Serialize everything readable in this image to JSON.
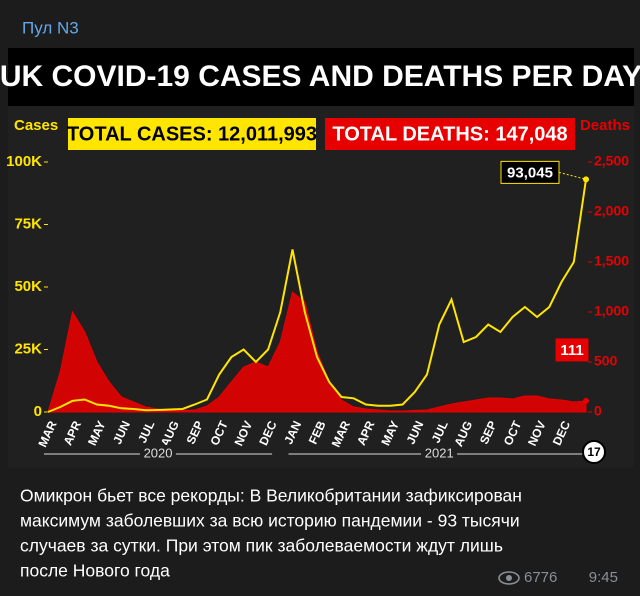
{
  "channel": "Пул N3",
  "chart_data": {
    "type": "line",
    "title": "UK COVID-19 CASES AND DEATHS PER DAY",
    "total_cases": "TOTAL CASES: 12,011,993",
    "total_deaths": "TOTAL DEATHS: 147,048",
    "y_label": "Cases",
    "y2_label": "Deaths",
    "categories": [
      "MAR",
      null,
      "APR",
      null,
      "MAY",
      null,
      "JUN",
      null,
      "JUL",
      null,
      "AUG",
      null,
      "SEP",
      null,
      "OCT",
      null,
      "NOV",
      null,
      "DEC",
      null,
      "JAN",
      null,
      "FEB",
      null,
      "MAR",
      null,
      "APR",
      null,
      "MAY",
      null,
      "JUN",
      null,
      "JUL",
      null,
      "AUG",
      null,
      "SEP",
      null,
      "OCT",
      null,
      "NOV",
      null,
      "DEC",
      null,
      null
    ],
    "years": [
      "2020",
      "2021"
    ],
    "series": [
      {
        "name": "Cases",
        "color": "#ffe500",
        "values": [
          0,
          2000,
          4500,
          5000,
          3000,
          2500,
          1500,
          1200,
          700,
          800,
          1000,
          1200,
          3000,
          5000,
          15000,
          22000,
          25000,
          20000,
          25000,
          40000,
          65000,
          40000,
          22000,
          12000,
          6000,
          5500,
          3000,
          2500,
          2500,
          3000,
          8000,
          15000,
          35000,
          45000,
          28000,
          30000,
          35000,
          32000,
          38000,
          42000,
          38000,
          42000,
          52000,
          60000,
          93045
        ],
        "value_labels": [
          null,
          null,
          null,
          null,
          null,
          null,
          null,
          null,
          null,
          null,
          null,
          null,
          null,
          null,
          null,
          null,
          null,
          null,
          null,
          null,
          null,
          null,
          null,
          null,
          null,
          null,
          null,
          null,
          null,
          null,
          null,
          null,
          null,
          null,
          null,
          null,
          null,
          null,
          null,
          null,
          null,
          null,
          null,
          null,
          "93,045"
        ]
      },
      {
        "name": "Deaths",
        "color": "#e60000",
        "axis": "y2",
        "values": [
          0,
          400,
          1000,
          800,
          500,
          300,
          150,
          100,
          50,
          30,
          15,
          15,
          20,
          60,
          150,
          300,
          450,
          500,
          450,
          700,
          1200,
          1100,
          600,
          300,
          120,
          50,
          30,
          20,
          10,
          10,
          15,
          20,
          50,
          80,
          100,
          120,
          140,
          140,
          130,
          160,
          160,
          130,
          120,
          100,
          111
        ],
        "value_labels": [
          null,
          null,
          null,
          null,
          null,
          null,
          null,
          null,
          null,
          null,
          null,
          null,
          null,
          null,
          null,
          null,
          null,
          null,
          null,
          null,
          null,
          null,
          null,
          null,
          null,
          null,
          null,
          null,
          null,
          null,
          null,
          null,
          null,
          null,
          null,
          null,
          null,
          null,
          null,
          null,
          null,
          null,
          null,
          null,
          "111"
        ]
      }
    ],
    "ylim": [
      0,
      100000
    ],
    "yticks": [
      0,
      {
        "value": 25000,
        "label": "25K"
      },
      {
        "value": 50000,
        "label": "50K"
      },
      {
        "value": 75000,
        "label": "75K"
      },
      {
        "value": 100000,
        "label": "100K"
      }
    ],
    "y2lim": [
      0,
      2500
    ],
    "y2ticks": [
      0,
      500,
      {
        "value": 1000,
        "label": "1,000"
      },
      {
        "value": 1500,
        "label": "1,500"
      },
      {
        "value": 2000,
        "label": "2,000"
      },
      {
        "value": 2500,
        "label": "2,500"
      }
    ],
    "badge": "17"
  },
  "message_lines": [
    "Омикрон бьет все рекорды: В Великобритании зафиксирован",
    "максимум заболевших за всю историю пандемии - 93 тысячи",
    "случаев за сутки. При этом пик заболеваемости ждут лишь",
    "после Нового года"
  ],
  "views": "6776",
  "time": "9:45"
}
